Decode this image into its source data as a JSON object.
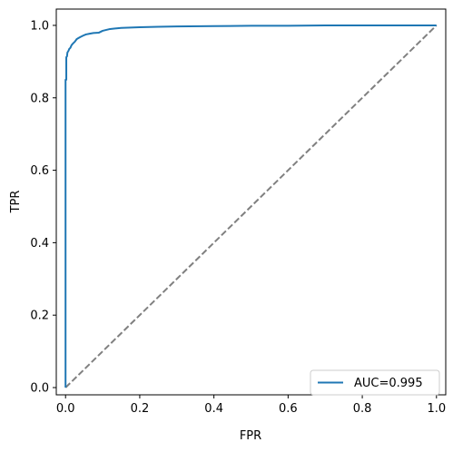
{
  "chart_data": {
    "type": "line",
    "title": "",
    "xlabel": "FPR",
    "ylabel": "TPR",
    "xlim": [
      -0.025,
      1.025
    ],
    "ylim": [
      -0.02,
      1.045
    ],
    "xticks": [
      0.0,
      0.2,
      0.4,
      0.6,
      0.8,
      1.0
    ],
    "xtick_labels": [
      "0.0",
      "0.2",
      "0.4",
      "0.6",
      "0.8",
      "1.0"
    ],
    "yticks": [
      0.0,
      0.2,
      0.4,
      0.6,
      0.8,
      1.0
    ],
    "ytick_labels": [
      "0.0",
      "0.2",
      "0.4",
      "0.6",
      "0.8",
      "1.0"
    ],
    "grid": false,
    "legend_position": "lower-right",
    "series": [
      {
        "name": "AUC=0.995",
        "color": "#1f77b4",
        "style": "solid",
        "x": [
          0.0,
          0.0,
          0.0,
          0.002,
          0.002,
          0.004,
          0.005,
          0.008,
          0.01,
          0.013,
          0.016,
          0.02,
          0.025,
          0.03,
          0.035,
          0.04,
          0.048,
          0.055,
          0.065,
          0.075,
          0.09,
          0.1,
          0.12,
          0.15,
          0.2,
          0.25,
          0.3,
          0.4,
          0.5,
          0.6,
          0.7,
          0.8,
          0.9,
          1.0
        ],
        "y": [
          0.0,
          0.845,
          0.85,
          0.85,
          0.912,
          0.915,
          0.925,
          0.93,
          0.935,
          0.938,
          0.945,
          0.95,
          0.955,
          0.962,
          0.965,
          0.968,
          0.972,
          0.975,
          0.977,
          0.979,
          0.98,
          0.985,
          0.99,
          0.993,
          0.995,
          0.996,
          0.997,
          0.998,
          0.999,
          0.999,
          1.0,
          1.0,
          1.0,
          1.0
        ]
      },
      {
        "name": "",
        "color": "#808080",
        "style": "dashed",
        "x": [
          0.0,
          1.0
        ],
        "y": [
          0.0,
          1.0
        ]
      }
    ]
  }
}
